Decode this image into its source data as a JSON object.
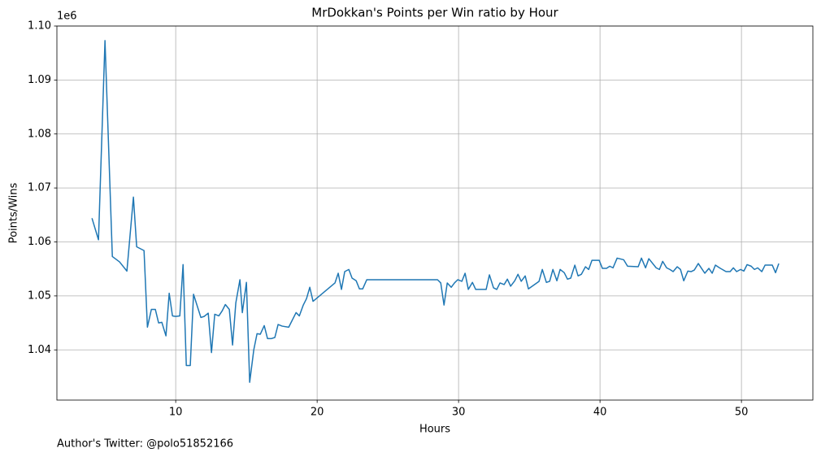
{
  "chart_data": {
    "type": "line",
    "title": "MrDokkan's Points per Win ratio by Hour",
    "xlabel": "Hours",
    "ylabel": "Points/Wins",
    "y_offset_label": "1e6",
    "footnote": "Author's Twitter: @polo51852166",
    "grid": true,
    "xlim": [
      1.6,
      55.05
    ],
    "ylim": [
      1.0307,
      1.1
    ],
    "xticks": [
      10,
      20,
      30,
      40,
      50
    ],
    "yticks": [
      1.04,
      1.05,
      1.06,
      1.07,
      1.08,
      1.09,
      {
        "value": 1.1,
        "label": "1.10"
      }
    ],
    "x": [
      4.08,
      4.54,
      5.0,
      5.52,
      6.03,
      6.55,
      7.01,
      7.24,
      7.76,
      8.0,
      8.28,
      8.56,
      8.79,
      9.02,
      9.31,
      9.54,
      9.77,
      10.0,
      10.29,
      10.52,
      10.75,
      11.03,
      11.26,
      11.78,
      12.01,
      12.3,
      12.53,
      12.76,
      13.05,
      13.28,
      13.51,
      13.79,
      14.02,
      14.25,
      14.54,
      14.71,
      15.0,
      15.23,
      15.52,
      15.75,
      15.98,
      16.26,
      16.49,
      16.78,
      17.01,
      17.24,
      17.53,
      17.99,
      18.51,
      18.74,
      19.02,
      19.25,
      19.48,
      19.71,
      21.26,
      21.49,
      21.72,
      21.95,
      22.24,
      22.47,
      22.76,
      22.99,
      23.22,
      23.51,
      28.51,
      28.74,
      28.97,
      29.2,
      29.48,
      29.71,
      29.94,
      30.23,
      30.46,
      30.69,
      30.98,
      31.21,
      31.95,
      32.18,
      32.47,
      32.7,
      32.93,
      33.22,
      33.45,
      33.68,
      33.97,
      34.2,
      34.43,
      34.71,
      34.94,
      35.69,
      35.92,
      36.21,
      36.44,
      36.67,
      36.95,
      37.18,
      37.47,
      37.7,
      37.93,
      38.22,
      38.45,
      38.68,
      38.97,
      39.2,
      39.43,
      39.94,
      40.17,
      40.46,
      40.69,
      40.92,
      41.21,
      41.67,
      41.95,
      42.7,
      42.93,
      43.22,
      43.45,
      43.97,
      44.2,
      44.43,
      44.71,
      44.94,
      45.17,
      45.46,
      45.69,
      45.92,
      46.21,
      46.44,
      46.67,
      46.95,
      47.18,
      47.41,
      47.7,
      47.93,
      48.16,
      48.45,
      48.91,
      49.2,
      49.43,
      49.66,
      49.94,
      50.17,
      50.4,
      50.69,
      50.92,
      51.15,
      51.44,
      51.67,
      52.18,
      52.41,
      52.64
    ],
    "series": [
      {
        "name": "Points/Wins",
        "color": "#1f77b4",
        "values": [
          1.0644,
          1.0604,
          1.0973,
          1.0573,
          1.0563,
          1.0546,
          1.0683,
          1.0591,
          1.0584,
          1.0442,
          1.0475,
          1.0475,
          1.045,
          1.0451,
          1.0426,
          1.0505,
          1.0463,
          1.0462,
          1.0463,
          1.0558,
          1.0371,
          1.0371,
          1.0503,
          1.046,
          1.0462,
          1.0468,
          1.0395,
          1.0466,
          1.0463,
          1.0472,
          1.0484,
          1.0475,
          1.0409,
          1.0487,
          1.053,
          1.0469,
          1.0525,
          1.034,
          1.04,
          1.043,
          1.0429,
          1.0445,
          1.0421,
          1.0421,
          1.0423,
          1.0447,
          1.0444,
          1.0442,
          1.0469,
          1.0463,
          1.0483,
          1.0495,
          1.0516,
          1.049,
          1.0524,
          1.0542,
          1.0512,
          1.0545,
          1.0549,
          1.0533,
          1.0528,
          1.0513,
          1.0513,
          1.053,
          1.053,
          1.0524,
          1.0483,
          1.0524,
          1.0516,
          1.0524,
          1.053,
          1.0527,
          1.0542,
          1.0512,
          1.0525,
          1.0512,
          1.0512,
          1.0539,
          1.0515,
          1.0512,
          1.0524,
          1.0521,
          1.0531,
          1.0518,
          1.0528,
          1.054,
          1.0527,
          1.0537,
          1.0513,
          1.0527,
          1.0549,
          1.0525,
          1.0527,
          1.0549,
          1.0528,
          1.0549,
          1.0543,
          1.0531,
          1.0533,
          1.0557,
          1.0537,
          1.054,
          1.0554,
          1.0549,
          1.0566,
          1.0566,
          1.0551,
          1.0551,
          1.0555,
          1.0552,
          1.057,
          1.0567,
          1.0555,
          1.0554,
          1.057,
          1.0552,
          1.0569,
          1.0552,
          1.0549,
          1.0564,
          1.0552,
          1.0549,
          1.0545,
          1.0554,
          1.0549,
          1.0528,
          1.0546,
          1.0545,
          1.0548,
          1.056,
          1.0551,
          1.0542,
          1.0551,
          1.0542,
          1.0557,
          1.0552,
          1.0545,
          1.0545,
          1.0552,
          1.0545,
          1.0549,
          1.0546,
          1.0558,
          1.0555,
          1.0549,
          1.0552,
          1.0545,
          1.0557,
          1.0557,
          1.0543,
          1.056
        ]
      }
    ]
  }
}
